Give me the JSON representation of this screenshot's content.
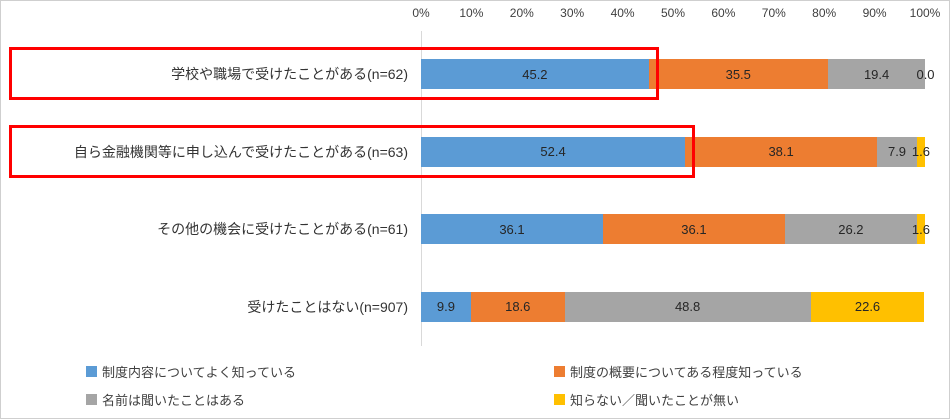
{
  "chart_data": {
    "type": "bar",
    "orientation": "horizontal",
    "stacked": true,
    "title": "",
    "xlabel": "",
    "ylabel": "",
    "x_axis": {
      "min": 0,
      "max": 100,
      "unit": "%",
      "position": "top",
      "grid": false,
      "ticks": [
        "0%",
        "10%",
        "20%",
        "30%",
        "40%",
        "50%",
        "60%",
        "70%",
        "80%",
        "90%",
        "100%"
      ]
    },
    "categories": [
      "学校や職場で受けたことがある(n=62)",
      "自ら金融機関等に申し込んで受けたことがある(n=63)",
      "その他の機会に受けたことがある(n=61)",
      "受けたことはない(n=907)"
    ],
    "series": [
      {
        "name": "制度内容についてよく知っている",
        "color": "#5B9BD5",
        "values": [
          45.2,
          52.4,
          36.1,
          9.9
        ]
      },
      {
        "name": "制度の概要についてある程度知っている",
        "color": "#ED7D31",
        "values": [
          35.5,
          38.1,
          36.1,
          18.6
        ]
      },
      {
        "name": "名前は聞いたことはある",
        "color": "#A5A5A5",
        "values": [
          19.4,
          7.9,
          26.2,
          48.8
        ]
      },
      {
        "name": "知らない／聞いたことが無い",
        "color": "#FFC000",
        "values": [
          0.0,
          1.6,
          1.6,
          22.6
        ]
      }
    ],
    "data_label_decimals": 1,
    "legend_position": "bottom",
    "annotations": {
      "highlighted_rows": [
        0,
        1
      ],
      "highlight_color": "#FF0000",
      "description": "Red rectangles drawn around the first two category labels and their first (blue) segments"
    }
  }
}
